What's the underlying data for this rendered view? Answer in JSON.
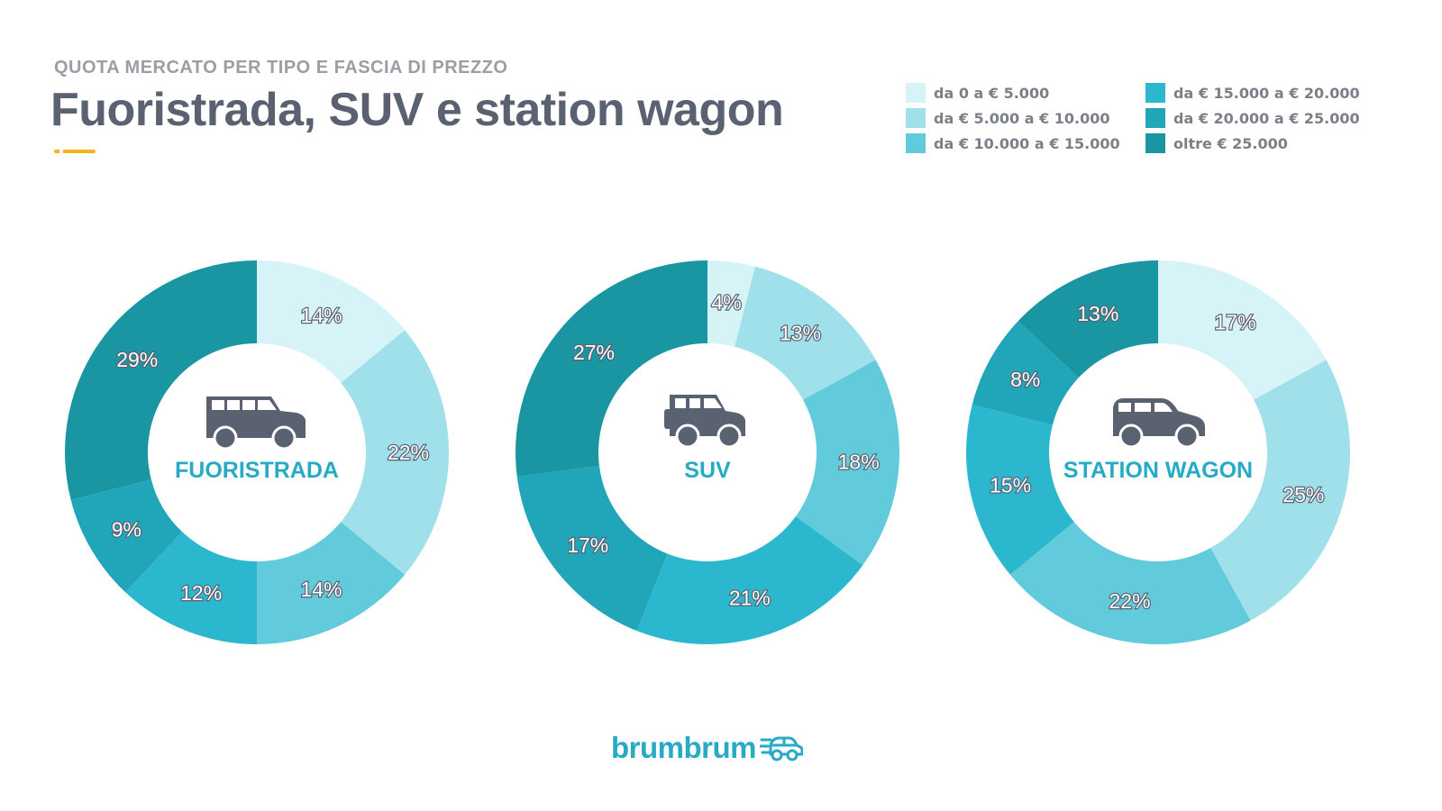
{
  "header": {
    "subtitle": "QUOTA MERCATO PER TIPO E FASCIA DI PREZZO",
    "title": "Fuoristrada, SUV e station wagon"
  },
  "legend": [
    {
      "label": "da 0 a € 5.000",
      "color": "#d6f3f8"
    },
    {
      "label": "da € 5.000 a € 10.000",
      "color": "#9fe0ea"
    },
    {
      "label": "da € 10.000 a € 15.000",
      "color": "#62cbdb"
    },
    {
      "label": "da € 15.000 a € 20.000",
      "color": "#2bb8cf"
    },
    {
      "label": "da € 20.000 a € 25.000",
      "color": "#21a5b9"
    },
    {
      "label": "oltre € 25.000",
      "color": "#1a96a3"
    }
  ],
  "chart_data": [
    {
      "type": "pie",
      "title": "FUORISTRADA",
      "icon": "offroad-car-icon",
      "categories": [
        "da 0 a € 5.000",
        "da € 5.000 a € 10.000",
        "da € 10.000 a € 15.000",
        "da € 15.000 a € 20.000",
        "da € 20.000 a € 25.000",
        "oltre € 25.000"
      ],
      "values": [
        14,
        22,
        14,
        12,
        9,
        29
      ],
      "labels": [
        "14%",
        "22%",
        "14%",
        "12%",
        "9%",
        "29%"
      ]
    },
    {
      "type": "pie",
      "title": "SUV",
      "icon": "suv-car-icon",
      "categories": [
        "da 0 a € 5.000",
        "da € 5.000 a € 10.000",
        "da € 10.000 a € 15.000",
        "da € 15.000 a € 20.000",
        "da € 20.000 a € 25.000",
        "oltre € 25.000"
      ],
      "values": [
        4,
        13,
        18,
        21,
        17,
        27
      ],
      "labels": [
        "4%",
        "13%",
        "18%",
        "21%",
        "17%",
        "27%"
      ]
    },
    {
      "type": "pie",
      "title": "STATION WAGON",
      "icon": "station-wagon-car-icon",
      "categories": [
        "da 0 a € 5.000",
        "da € 5.000 a € 10.000",
        "da € 10.000 a € 15.000",
        "da € 15.000 a € 20.000",
        "da € 20.000 a € 25.000",
        "oltre € 25.000"
      ],
      "values": [
        17,
        25,
        22,
        15,
        8,
        13
      ],
      "labels": [
        "17%",
        "25%",
        "22%",
        "15%",
        "8%",
        "13%"
      ]
    }
  ],
  "colors": {
    "title_label": "#27aac4",
    "icon": "#5a6272"
  },
  "brand": {
    "name": "brumbrum"
  }
}
